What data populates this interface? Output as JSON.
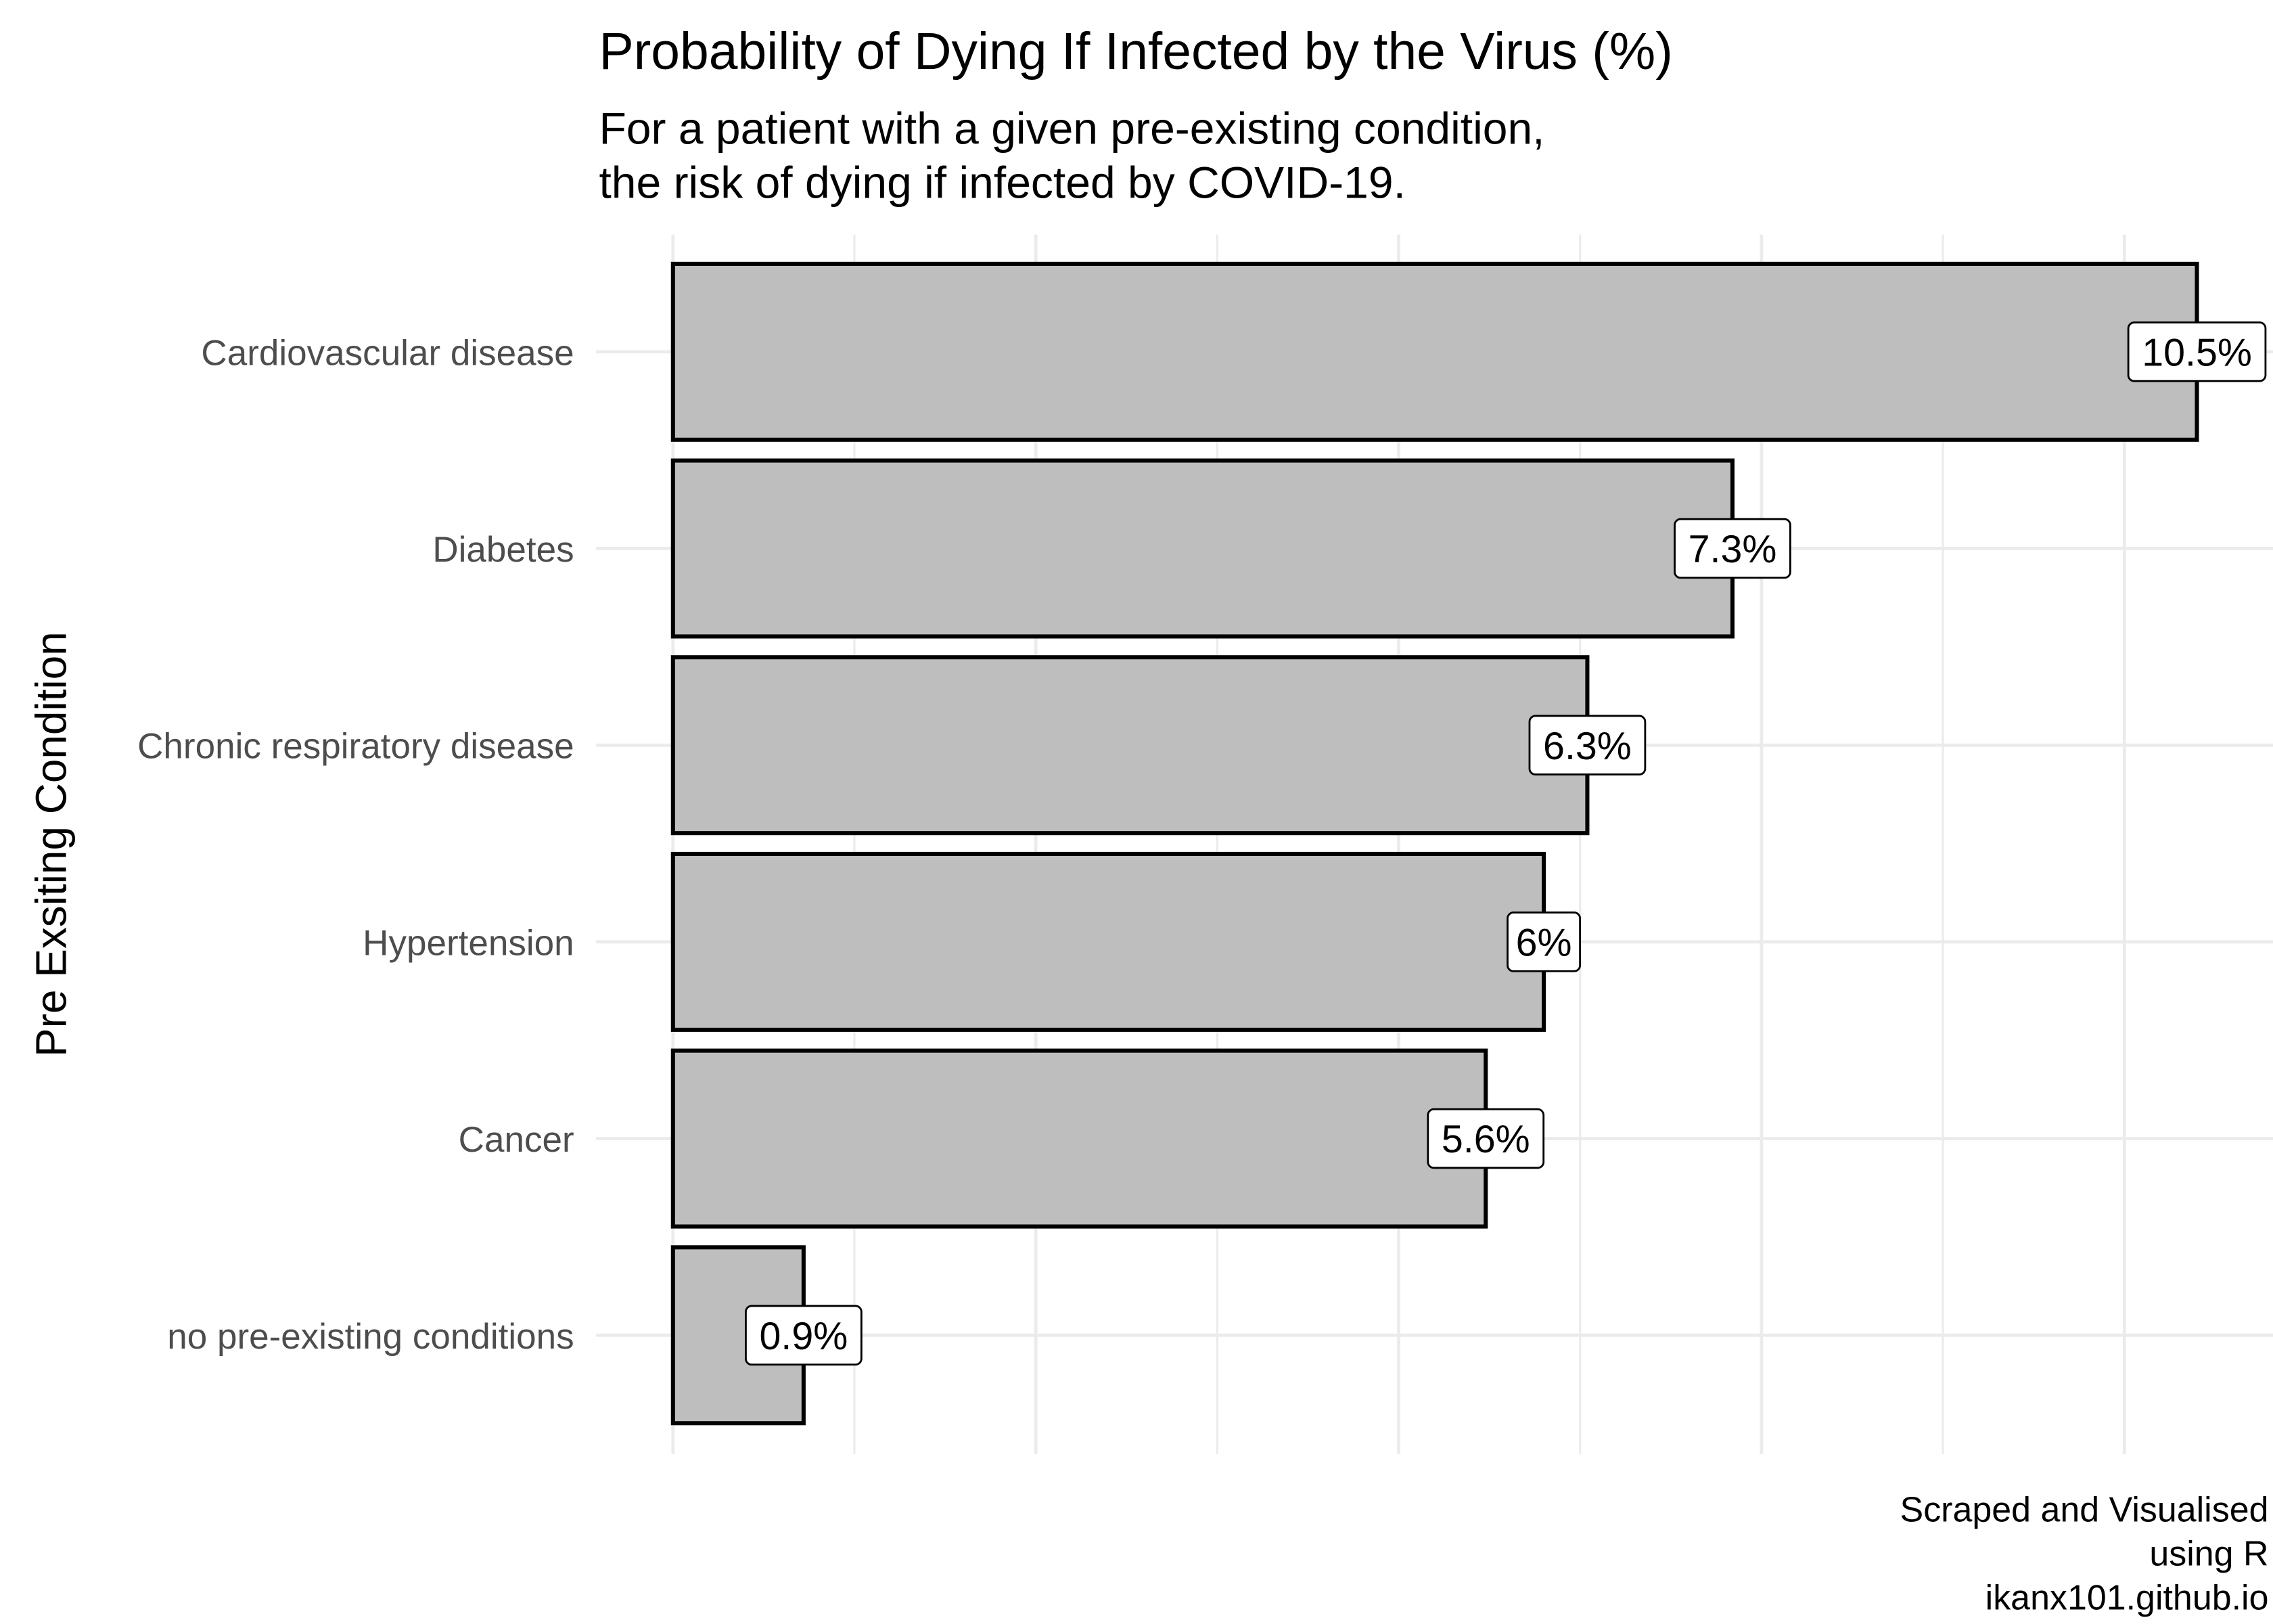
{
  "chart_data": {
    "type": "bar",
    "orientation": "horizontal",
    "title": "Probability of Dying If Infected by the Virus (%)",
    "subtitle": [
      "For a patient with a given pre-existing condition,",
      "the risk of dying if infected by COVID-19."
    ],
    "ylabel": "Pre Exsiting Condition",
    "xlabel": "",
    "categories": [
      "Cardiovascular disease",
      "Diabetes",
      "Chronic respiratory disease",
      "Hypertension",
      "Cancer",
      "no pre-existing conditions"
    ],
    "values": [
      10.5,
      7.3,
      6.3,
      6,
      5.6,
      0.9
    ],
    "data_labels": [
      "10.5%",
      "7.3%",
      "6.3%",
      "6%",
      "5.6%",
      "0.9%"
    ],
    "xlim": [
      0,
      11
    ],
    "x_tick_labels_shown": false,
    "grid": true,
    "legend": "none",
    "caption": [
      "Scraped and Visualised",
      "using R",
      "ikanx101.github.io"
    ],
    "colors": {
      "bar_fill": "#bebebe",
      "bar_outline": "#000000",
      "grid": "#ebebeb",
      "label_fill": "#ffffff",
      "axis_text": "#4d4d4d"
    }
  }
}
